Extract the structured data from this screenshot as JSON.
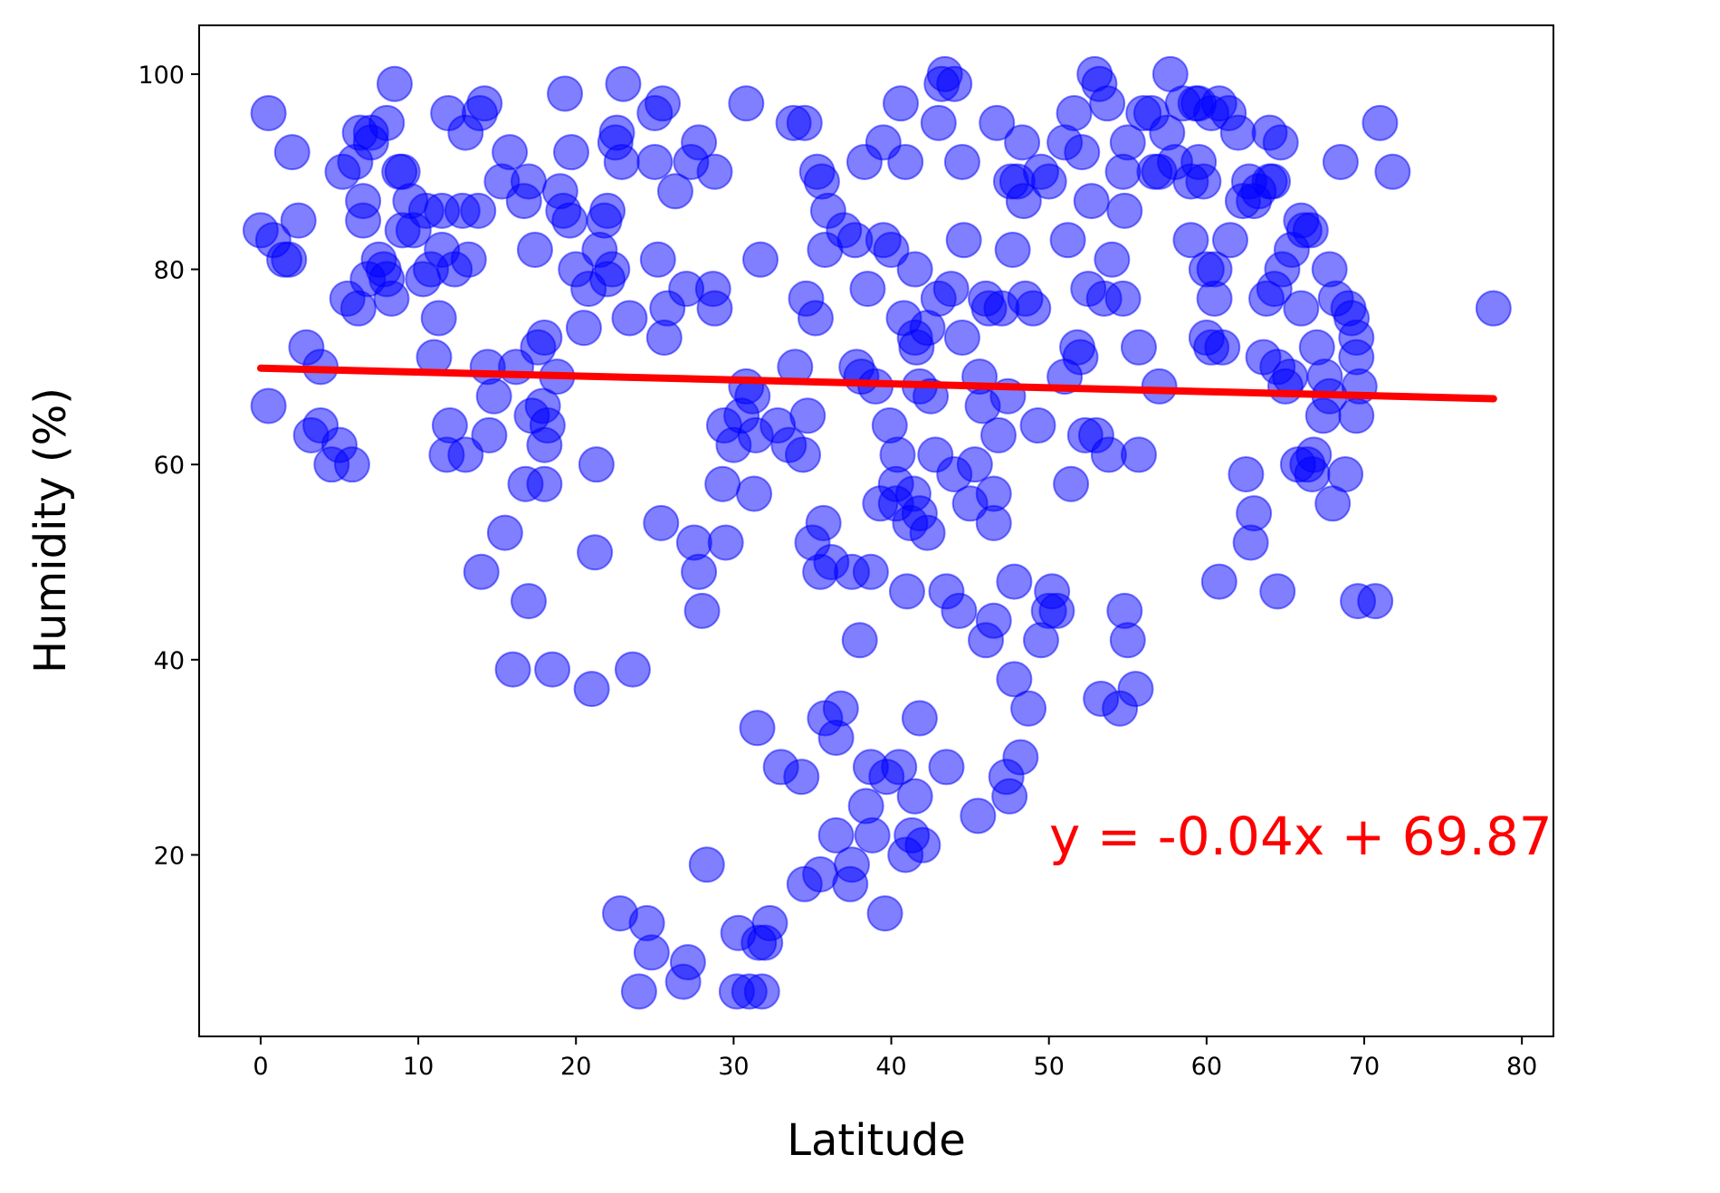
{
  "chart_data": {
    "type": "scatter",
    "xlabel": "Latitude",
    "ylabel": "Humidity (%)",
    "annotation": "y = -0.04x + 69.87",
    "xlim": [
      -3.9,
      82
    ],
    "ylim": [
      1.4,
      105
    ],
    "xticks": [
      0,
      10,
      20,
      30,
      40,
      50,
      60,
      70,
      80
    ],
    "yticks": [
      20,
      40,
      60,
      80,
      100
    ],
    "color": "blue",
    "alpha": 0.5,
    "x": [
      0,
      0.5,
      0.5,
      0.8,
      1.5,
      1.8,
      2,
      2.4,
      2.9,
      3.2,
      3.8,
      3.8,
      4.5,
      5,
      5.2,
      5.5,
      5.8,
      6,
      6.2,
      6.3,
      6.5,
      6.5,
      6.8,
      7,
      7,
      7.5,
      7.8,
      8,
      8,
      8.3,
      8.5,
      8.8,
      9,
      9,
      9.5,
      9.7,
      10.3,
      10.5,
      10.8,
      11,
      11.3,
      11.5,
      11.5,
      11.8,
      11.9,
      12,
      12.3,
      12.8,
      13,
      13,
      13.2,
      13.8,
      13.9,
      14,
      14.2,
      14.4,
      14.5,
      14.8,
      15.3,
      15.5,
      15.8,
      16,
      16.2,
      16.7,
      16.8,
      17,
      17,
      17.2,
      17.4,
      17.6,
      17.9,
      18,
      18,
      18,
      18.2,
      18.5,
      18.8,
      19,
      19.2,
      19.3,
      19.6,
      19.7,
      20,
      20.5,
      20.8,
      21,
      21.2,
      21.3,
      21.5,
      21.8,
      22,
      22,
      22.3,
      22.5,
      22.6,
      22.8,
      22.9,
      23,
      23.4,
      23.6,
      24,
      24.5,
      24.8,
      25,
      25,
      25.2,
      25.4,
      25.5,
      25.6,
      25.8,
      26.3,
      26.8,
      27,
      27.1,
      27.3,
      27.5,
      27.8,
      27.8,
      28,
      28.3,
      28.7,
      28.8,
      28.8,
      29.3,
      29.4,
      29.5,
      30,
      30.2,
      30.3,
      30.5,
      30.8,
      30.8,
      31,
      31.2,
      31.3,
      31.4,
      31.5,
      31.6,
      31.7,
      31.8,
      32,
      32.3,
      32.8,
      33,
      33.5,
      33.8,
      33.9,
      34.3,
      34.4,
      34.5,
      34.5,
      34.6,
      34.7,
      35,
      35.2,
      35.3,
      35.5,
      35.5,
      35.6,
      35.7,
      35.8,
      35.8,
      36,
      36.2,
      36.5,
      36.5,
      36.8,
      37,
      37.4,
      37.5,
      37.5,
      37.7,
      37.8,
      38,
      38.1,
      38.3,
      38.4,
      38.5,
      38.7,
      38.7,
      38.8,
      39,
      39.3,
      39.5,
      39.5,
      39.6,
      39.7,
      39.9,
      40,
      40.3,
      40.3,
      40.4,
      40.5,
      40.6,
      40.8,
      40.9,
      40.9,
      41,
      41.2,
      41.3,
      41.4,
      41.5,
      41.5,
      41.5,
      41.6,
      41.8,
      41.8,
      41.8,
      42,
      42.3,
      42.3,
      42.5,
      42.8,
      43,
      43,
      43.2,
      43.4,
      43.5,
      43.5,
      43.8,
      44,
      44,
      44.3,
      44.5,
      44.5,
      44.6,
      45,
      45.3,
      45.5,
      45.6,
      45.8,
      46,
      46,
      46.2,
      46.5,
      46.5,
      46.5,
      46.7,
      46.8,
      47,
      47.3,
      47.4,
      47.5,
      47.6,
      47.7,
      47.8,
      47.8,
      48,
      48.2,
      48.3,
      48.4,
      48.5,
      48.7,
      49,
      49.3,
      49.5,
      49.5,
      50,
      50,
      50.2,
      50.5,
      51,
      51,
      51.2,
      51.4,
      51.6,
      51.8,
      52,
      52.1,
      52.3,
      52.5,
      52.7,
      52.9,
      53,
      53.2,
      53.3,
      53.5,
      53.7,
      53.8,
      54,
      54.5,
      54.7,
      54.7,
      54.8,
      54.8,
      55,
      55,
      55.5,
      55.7,
      55.7,
      56,
      56.5,
      56.7,
      57,
      57,
      57.5,
      57.7,
      58,
      58.5,
      59,
      59,
      59.3,
      59.5,
      59.5,
      59.8,
      60,
      60,
      60.3,
      60.3,
      60.5,
      60.5,
      60.8,
      60.8,
      61,
      61.4,
      61.5,
      62,
      62.3,
      62.5,
      62.7,
      62.8,
      63,
      63,
      63.3,
      63.6,
      63.8,
      64,
      64,
      64.2,
      64.3,
      64.5,
      64.5,
      64.7,
      64.8,
      65,
      65.3,
      65.4,
      65.8,
      66,
      66,
      66.2,
      66.4,
      66.6,
      66.7,
      66.8,
      67,
      67.4,
      67.5,
      67.8,
      67.8,
      68,
      68.2,
      68.5,
      68.8,
      69,
      69.2,
      69.5,
      69.5,
      69.5,
      69.6,
      69.7,
      70.7,
      71,
      71.8,
      78.2
    ],
    "values": [
      84,
      96,
      66,
      83,
      81,
      81,
      92,
      85,
      72,
      63,
      70,
      64,
      60,
      62,
      90,
      77,
      60,
      91,
      76,
      94,
      85,
      87,
      79,
      94,
      93,
      81,
      80,
      95,
      79,
      77,
      99,
      90,
      90,
      84,
      87,
      84,
      79,
      86,
      80,
      71,
      75,
      86,
      82,
      61,
      96,
      64,
      80,
      86,
      94,
      61,
      81,
      86,
      96,
      49,
      97,
      70,
      63,
      67,
      89,
      53,
      92,
      39,
      70,
      87,
      58,
      89,
      46,
      65,
      82,
      72,
      66,
      62,
      58,
      73,
      64,
      39,
      69,
      88,
      86,
      98,
      85,
      92,
      80,
      74,
      78,
      37,
      51,
      60,
      82,
      85,
      86,
      79,
      80,
      93,
      94,
      14,
      91,
      99,
      75,
      39,
      6,
      13,
      10,
      96,
      91,
      81,
      54,
      97,
      73,
      76,
      88,
      7,
      78,
      9,
      91,
      52,
      49,
      93,
      45,
      19,
      78,
      76,
      90,
      58,
      64,
      52,
      62,
      6,
      12,
      65,
      97,
      68,
      6,
      67,
      57,
      63,
      33,
      11,
      81,
      6,
      11,
      13,
      64,
      29,
      62,
      95,
      70,
      28,
      61,
      95,
      17,
      77,
      65,
      52,
      75,
      90,
      18,
      49,
      89,
      54,
      34,
      82,
      86,
      50,
      22,
      32,
      35,
      84,
      17,
      49,
      19,
      83,
      70,
      42,
      69,
      91,
      25,
      78,
      29,
      49,
      22,
      68,
      56,
      83,
      93,
      14,
      28,
      64,
      82,
      58,
      56,
      61,
      29,
      97,
      75,
      91,
      20,
      47,
      54,
      22,
      57,
      73,
      80,
      26,
      72,
      34,
      55,
      68,
      21,
      53,
      74,
      67,
      61,
      95,
      77,
      99,
      100,
      47,
      29,
      78,
      99,
      59,
      45,
      91,
      73,
      83,
      56,
      60,
      24,
      69,
      66,
      77,
      42,
      76,
      44,
      57,
      54,
      95,
      63,
      76,
      28,
      67,
      26,
      89,
      82,
      38,
      48,
      89,
      30,
      93,
      87,
      77,
      35,
      76,
      64,
      42,
      90,
      45,
      89,
      47,
      45,
      93,
      69,
      83,
      58,
      96,
      72,
      71,
      92,
      63,
      78,
      87,
      100,
      63,
      99,
      36,
      77,
      97,
      61,
      81,
      35,
      90,
      77,
      86,
      45,
      93,
      42,
      37,
      61,
      72,
      96,
      96,
      90,
      90,
      68,
      94,
      100,
      91,
      97,
      83,
      89,
      97,
      97,
      91,
      89,
      73,
      80,
      72,
      96,
      80,
      77,
      97,
      48,
      72,
      96,
      83,
      94,
      87,
      59,
      89,
      52,
      55,
      87,
      88,
      71,
      77,
      89,
      94,
      89,
      78,
      70,
      47,
      93,
      80,
      68,
      69,
      82,
      60,
      85,
      76,
      84,
      60,
      84,
      59,
      61,
      72,
      65,
      69,
      80,
      67,
      56,
      77,
      91,
      59,
      76,
      75,
      73,
      71,
      65,
      46,
      68,
      46,
      95,
      90,
      76
    ],
    "regression": {
      "x": [
        0,
        78.2
      ],
      "values": [
        69.87,
        66.74
      ],
      "color": "red"
    }
  }
}
